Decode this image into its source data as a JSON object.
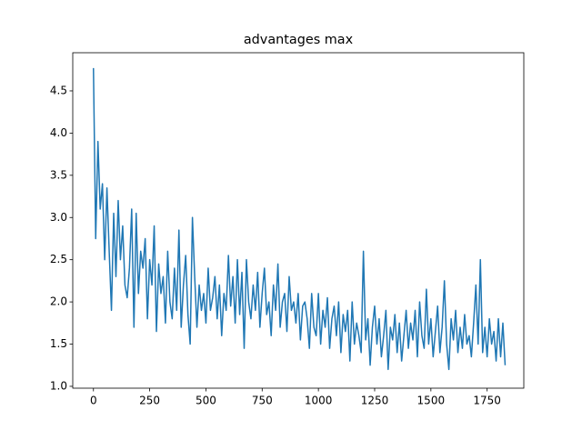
{
  "chart_data": {
    "type": "line",
    "title": "advantages max",
    "x": [
      0,
      10,
      20,
      30,
      40,
      50,
      60,
      70,
      80,
      90,
      100,
      110,
      120,
      130,
      140,
      150,
      160,
      170,
      180,
      190,
      200,
      210,
      220,
      230,
      240,
      250,
      260,
      270,
      280,
      290,
      300,
      310,
      320,
      330,
      340,
      350,
      360,
      370,
      380,
      390,
      400,
      410,
      420,
      430,
      440,
      450,
      460,
      470,
      480,
      490,
      500,
      510,
      520,
      530,
      540,
      550,
      560,
      570,
      580,
      590,
      600,
      610,
      620,
      630,
      640,
      650,
      660,
      670,
      680,
      690,
      700,
      710,
      720,
      730,
      740,
      750,
      760,
      770,
      780,
      790,
      800,
      810,
      820,
      830,
      840,
      850,
      860,
      870,
      880,
      890,
      900,
      910,
      920,
      930,
      940,
      950,
      960,
      970,
      980,
      990,
      1000,
      1010,
      1020,
      1030,
      1040,
      1050,
      1060,
      1070,
      1080,
      1090,
      1100,
      1110,
      1120,
      1130,
      1140,
      1150,
      1160,
      1170,
      1180,
      1190,
      1200,
      1210,
      1220,
      1230,
      1240,
      1250,
      1260,
      1270,
      1280,
      1290,
      1300,
      1310,
      1320,
      1330,
      1340,
      1350,
      1360,
      1370,
      1380,
      1390,
      1400,
      1410,
      1420,
      1430,
      1440,
      1450,
      1460,
      1470,
      1480,
      1490,
      1500,
      1510,
      1520,
      1530,
      1540,
      1550,
      1560,
      1570,
      1580,
      1590,
      1600,
      1610,
      1620,
      1630,
      1640,
      1650,
      1660,
      1670,
      1680,
      1690,
      1700,
      1710,
      1720,
      1730,
      1740,
      1750,
      1760,
      1770,
      1780,
      1790,
      1800,
      1810,
      1820,
      1830
    ],
    "series": [
      {
        "name": "advantages max",
        "color": "#1f77b4",
        "values": [
          4.77,
          2.75,
          3.9,
          3.1,
          3.4,
          2.5,
          3.35,
          2.6,
          1.9,
          3.05,
          2.3,
          3.2,
          2.5,
          2.9,
          2.2,
          2.05,
          2.4,
          3.1,
          1.7,
          3.05,
          2.1,
          2.6,
          2.4,
          2.75,
          1.8,
          2.5,
          2.2,
          2.9,
          1.65,
          2.45,
          2.1,
          2.3,
          1.75,
          2.6,
          2.0,
          1.8,
          2.4,
          1.9,
          2.85,
          1.7,
          2.2,
          2.55,
          1.85,
          1.5,
          3.0,
          2.3,
          1.7,
          2.2,
          1.9,
          2.1,
          1.75,
          2.4,
          1.9,
          2.05,
          2.3,
          1.8,
          2.2,
          1.6,
          2.1,
          1.9,
          2.55,
          1.95,
          2.3,
          1.75,
          2.5,
          1.85,
          2.35,
          1.45,
          2.5,
          2.0,
          1.8,
          2.2,
          1.9,
          2.35,
          1.7,
          2.1,
          2.4,
          1.85,
          2.0,
          1.6,
          2.2,
          1.9,
          2.45,
          1.7,
          2.0,
          2.1,
          1.65,
          2.3,
          1.9,
          2.0,
          1.75,
          2.1,
          1.55,
          1.95,
          2.0,
          1.8,
          1.45,
          2.1,
          1.7,
          1.6,
          2.1,
          1.5,
          1.9,
          1.7,
          2.05,
          1.45,
          1.8,
          1.95,
          1.6,
          2.0,
          1.4,
          1.85,
          1.65,
          1.9,
          1.3,
          2.0,
          1.5,
          1.75,
          1.6,
          1.4,
          2.6,
          1.55,
          1.8,
          1.25,
          1.7,
          1.95,
          1.5,
          1.8,
          1.35,
          1.6,
          1.9,
          1.2,
          1.7,
          1.55,
          1.85,
          1.4,
          1.75,
          1.3,
          1.6,
          1.9,
          1.45,
          1.75,
          1.55,
          1.9,
          1.35,
          2.0,
          1.6,
          1.45,
          2.15,
          1.5,
          1.8,
          1.35,
          1.65,
          1.95,
          1.4,
          1.7,
          2.25,
          1.5,
          1.2,
          1.8,
          1.55,
          1.9,
          1.4,
          1.7,
          1.45,
          1.85,
          1.5,
          1.6,
          1.35,
          1.75,
          2.2,
          1.5,
          2.5,
          1.4,
          1.7,
          1.35,
          1.8,
          1.5,
          1.65,
          1.3,
          1.8,
          1.35,
          1.75,
          1.25
        ]
      }
    ],
    "xlim": [
      -92,
      1913
    ],
    "ylim": [
      0.978,
      4.952
    ],
    "xticks": [
      0,
      250,
      500,
      750,
      1000,
      1250,
      1500,
      1750
    ],
    "yticks": [
      {
        "value": 1,
        "label": "1.0"
      },
      1.5,
      {
        "value": 2,
        "label": "2.0"
      },
      2.5,
      {
        "value": 3,
        "label": "3.0"
      },
      3.5,
      {
        "value": 4,
        "label": "4.0"
      },
      4.5
    ]
  }
}
